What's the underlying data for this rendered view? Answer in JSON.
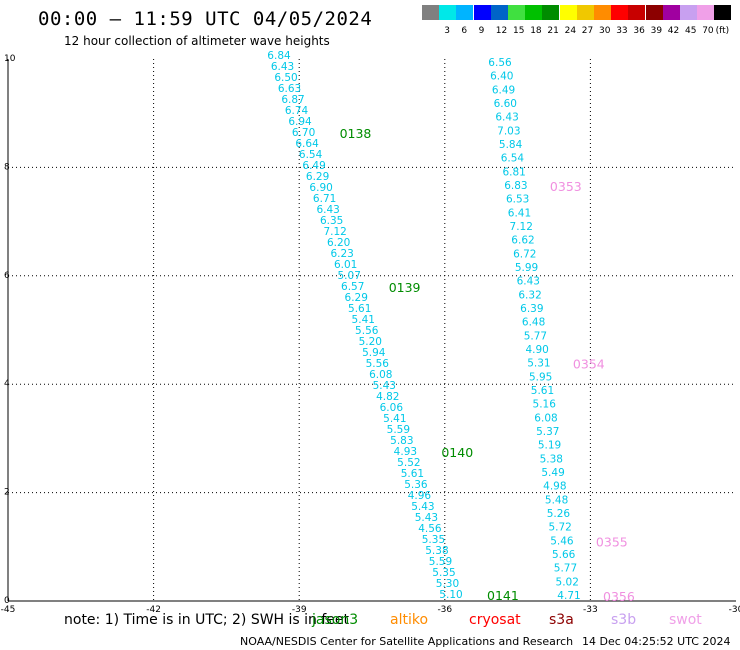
{
  "header": {
    "title": "00:00 — 11:59 UTC 04/05/2024",
    "subtitle": "12 hour collection of altimeter wave heights"
  },
  "legend": {
    "unit": "(ft)",
    "items": [
      {
        "label": "",
        "color": "#808080"
      },
      {
        "label": "3",
        "color": "#00e8e8"
      },
      {
        "label": "6",
        "color": "#00b4ff"
      },
      {
        "label": "9",
        "color": "#0000ff"
      },
      {
        "label": "12",
        "color": "#0064c8"
      },
      {
        "label": "15",
        "color": "#40e040"
      },
      {
        "label": "18",
        "color": "#00c000"
      },
      {
        "label": "21",
        "color": "#008c00"
      },
      {
        "label": "24",
        "color": "#ffff00"
      },
      {
        "label": "27",
        "color": "#f0c800"
      },
      {
        "label": "30",
        "color": "#ff8c00"
      },
      {
        "label": "33",
        "color": "#ff0000"
      },
      {
        "label": "36",
        "color": "#c80000"
      },
      {
        "label": "39",
        "color": "#8c0000"
      },
      {
        "label": "42",
        "color": "#a000a0"
      },
      {
        "label": "45",
        "color": "#c8a0f0"
      },
      {
        "label": "70",
        "color": "#f0a0e8"
      },
      {
        "label": "",
        "color": "#000000"
      }
    ]
  },
  "map": {
    "x_ticks": [
      "-45",
      "-42",
      "-39",
      "-36",
      "-33",
      "-30"
    ],
    "y_ticks": [
      "0",
      "2",
      "4",
      "6",
      "8",
      "10"
    ],
    "track_a": {
      "color": "#00c8e8",
      "values": [
        "6.84",
        "6.43",
        "6.50",
        "6.63",
        "6.87",
        "6.74",
        "6.94",
        "6.70",
        "6.64",
        "6.54",
        "6.49",
        "6.29",
        "6.90",
        "6.71",
        "6.43",
        "6.35",
        "7.12",
        "6.20",
        "6.23",
        "6.01",
        "5.07",
        "6.57",
        "6.29",
        "5.61",
        "5.41",
        "5.56",
        "5.20",
        "5.94",
        "5.56",
        "6.08",
        "5.43",
        "4.82",
        "6.06",
        "5.41",
        "5.59",
        "5.83",
        "4.93",
        "5.52",
        "5.61",
        "5.36",
        "4.96",
        "5.43",
        "5.43",
        "4.56",
        "5.35",
        "5.38",
        "5.59",
        "5.35",
        "5.30",
        "5.10"
      ],
      "times": [
        {
          "label": "0138",
          "color": "#008c00"
        },
        {
          "label": "0139",
          "color": "#008c00"
        },
        {
          "label": "0140",
          "color": "#008c00"
        },
        {
          "label": "0141",
          "color": "#008c00"
        }
      ]
    },
    "track_b": {
      "color": "#00c8e8",
      "values": [
        "6.56",
        "6.40",
        "6.49",
        "6.60",
        "6.43",
        "7.03",
        "5.84",
        "6.54",
        "6.81",
        "6.83",
        "6.53",
        "6.41",
        "7.12",
        "6.62",
        "6.72",
        "5.99",
        "6.43",
        "6.32",
        "6.39",
        "6.48",
        "5.77",
        "4.90",
        "5.31",
        "5.95",
        "5.61",
        "5.16",
        "6.08",
        "5.37",
        "5.19",
        "5.38",
        "5.49",
        "4.98",
        "5.48",
        "5.26",
        "5.72",
        "5.46",
        "5.66",
        "5.77",
        "5.02",
        "4.71"
      ],
      "times": [
        {
          "label": "0353",
          "color": "#f090e0"
        },
        {
          "label": "0354",
          "color": "#f090e0"
        },
        {
          "label": "0355",
          "color": "#f090e0"
        },
        {
          "label": "0356",
          "color": "#f090e0"
        }
      ]
    }
  },
  "footer": {
    "note": "note:  1) Time is in UTC; 2) SWH is in feet",
    "satellites": [
      {
        "label": "jason3",
        "color": "#008c00"
      },
      {
        "label": "altiko",
        "color": "#ff8c00"
      },
      {
        "label": "cryosat",
        "color": "#ff0000"
      },
      {
        "label": "s3a",
        "color": "#8c0000"
      },
      {
        "label": "s3b",
        "color": "#c8a0f0"
      },
      {
        "label": "swot",
        "color": "#f0a0e8"
      }
    ],
    "credit": "NOAA/NESDIS Center for Satellite Applications and Research",
    "timestamp": "14 Dec 04:25:52 UTC 2024"
  }
}
